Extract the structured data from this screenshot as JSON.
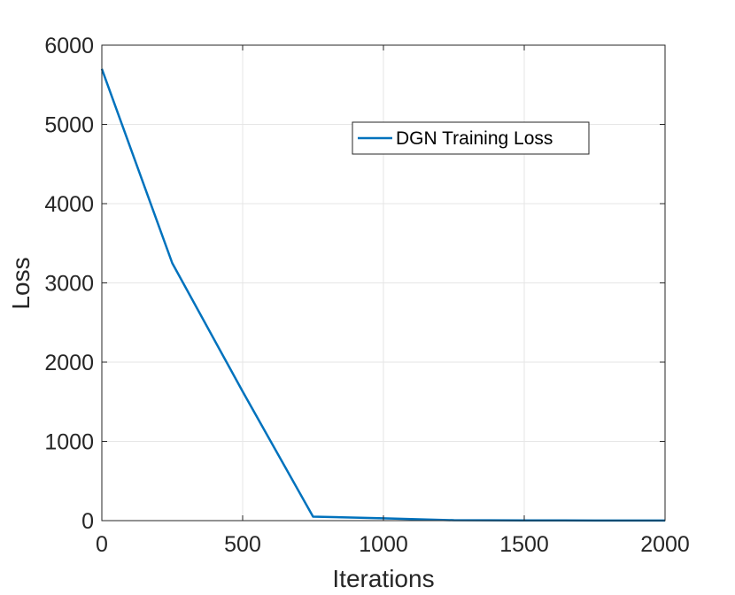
{
  "chart_data": {
    "type": "line",
    "xlabel": "Iterations",
    "ylabel": "Loss",
    "xlim": [
      0,
      2000
    ],
    "ylim": [
      0,
      6000
    ],
    "xticks": [
      0,
      500,
      1000,
      1500,
      2000
    ],
    "yticks": [
      0,
      1000,
      2000,
      3000,
      4000,
      5000,
      6000
    ],
    "xtick_labels": [
      "0",
      "500",
      "1000",
      "1500",
      "2000"
    ],
    "ytick_labels": [
      "0",
      "1000",
      "2000",
      "3000",
      "4000",
      "5000",
      "6000"
    ],
    "grid": true,
    "legend_position": "upper-right",
    "series": [
      {
        "name": "DGN Training Loss",
        "color": "#0072BD",
        "x": [
          0,
          250,
          500,
          750,
          1000,
          1250,
          1500,
          1750,
          2000
        ],
        "y": [
          5700,
          3250,
          1630,
          50,
          30,
          5,
          3,
          2,
          2
        ]
      }
    ]
  }
}
